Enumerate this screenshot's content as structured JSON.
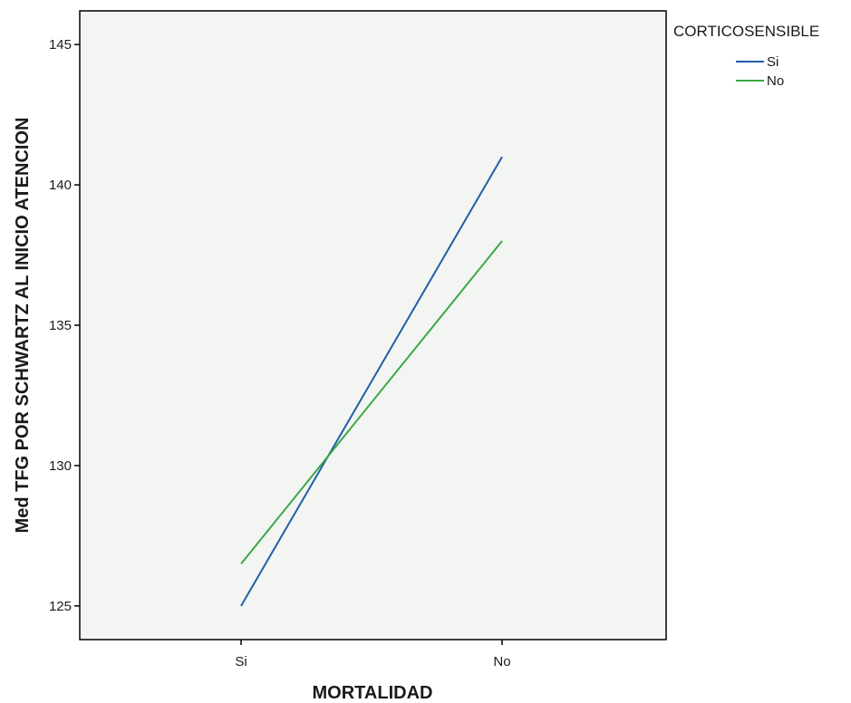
{
  "chart_data": {
    "type": "line",
    "xlabel": "MORTALIDAD",
    "ylabel": "Med TFG POR SCHWARTZ AL INICIO ATENCION",
    "categories": [
      "Si",
      "No"
    ],
    "ylim": [
      123.8,
      146.2
    ],
    "yticks": [
      125,
      130,
      135,
      140,
      145
    ],
    "grid": false,
    "legend": {
      "title": "CORTICOSENSIBLE",
      "position": "top-right"
    },
    "series": [
      {
        "name": "Si",
        "color": "#1f5fa8",
        "values": [
          125.0,
          141.0
        ]
      },
      {
        "name": "No",
        "color": "#3aa845",
        "values": [
          126.5,
          138.0
        ]
      }
    ]
  }
}
